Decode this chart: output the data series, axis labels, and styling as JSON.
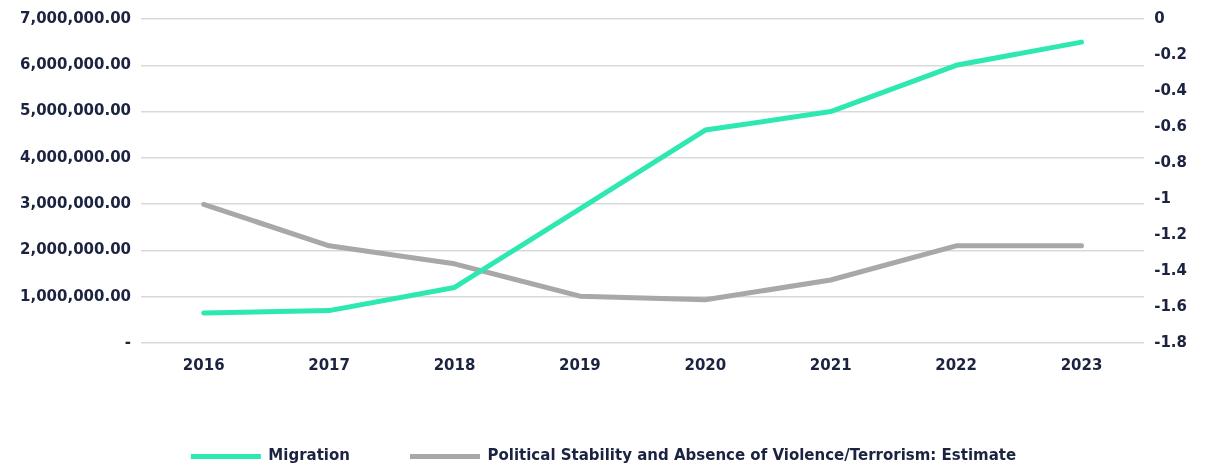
{
  "chart_data": {
    "type": "line",
    "categories": [
      "2016",
      "2017",
      "2018",
      "2019",
      "2020",
      "2021",
      "2022",
      "2023"
    ],
    "series": [
      {
        "name": "Migration",
        "color": "#2de8b0",
        "values": [
          650000,
          700000,
          1200000,
          2900000,
          4600000,
          5000000,
          6000000,
          6500000
        ]
      },
      {
        "name": "Political Stability and Absence of Violence/Terrorism: Estimate",
        "color": "#a9a7a9",
        "axis": "y2",
        "values": [
          -1.03,
          -1.26,
          -1.36,
          -1.54,
          -1.56,
          -1.45,
          -1.26,
          -1.26
        ]
      }
    ],
    "ylim": [
      0,
      7000000
    ],
    "yticks": [
      {
        "value": 0,
        "label": "-"
      },
      {
        "value": 1000000,
        "label": "1,000,000.00"
      },
      {
        "value": 2000000,
        "label": "2,000,000.00"
      },
      {
        "value": 3000000,
        "label": "3,000,000.00"
      },
      {
        "value": 4000000,
        "label": "4,000,000.00"
      },
      {
        "value": 5000000,
        "label": "5,000,000.00"
      },
      {
        "value": 6000000,
        "label": "6,000,000.00"
      },
      {
        "value": 7000000,
        "label": "7,000,000.00"
      }
    ],
    "y2lim": [
      -1.8,
      0
    ],
    "y2ticks": [
      -1.8,
      -1.6,
      -1.4,
      -1.2,
      -1,
      -0.8,
      -0.6,
      -0.4,
      -0.2,
      0
    ],
    "grid": "y",
    "legend": "bottom",
    "marker": "none",
    "line_style": "solid"
  }
}
